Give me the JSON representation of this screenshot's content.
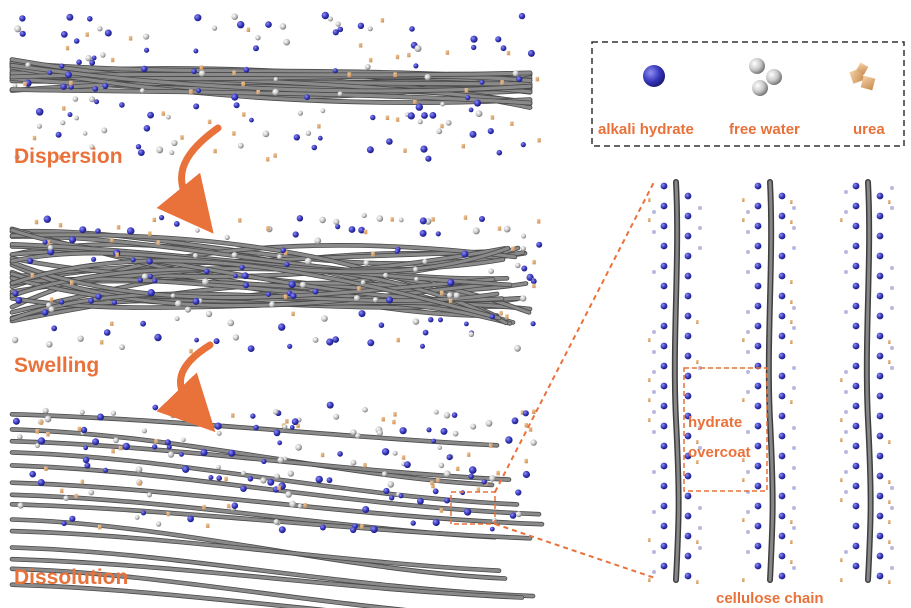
{
  "stages": [
    {
      "label": "Dispersion"
    },
    {
      "label": "Swelling"
    },
    {
      "label": "Dissolution"
    }
  ],
  "legend": {
    "items": [
      {
        "label": "alkali hydrate",
        "icon": "alkali-hydrate-icon"
      },
      {
        "label": "free water",
        "icon": "free-water-icon"
      },
      {
        "label": "urea",
        "icon": "urea-icon"
      }
    ]
  },
  "detail": {
    "box_label_line1": "hydrate",
    "box_label_line2": "overcoat",
    "caption": "cellulose chain"
  },
  "colors": {
    "accent": "#e9713a",
    "fiber": "#6b6b6b",
    "alkali": "#2f2fb0",
    "urea": "#d9a070",
    "water": "#bdbdbd"
  }
}
